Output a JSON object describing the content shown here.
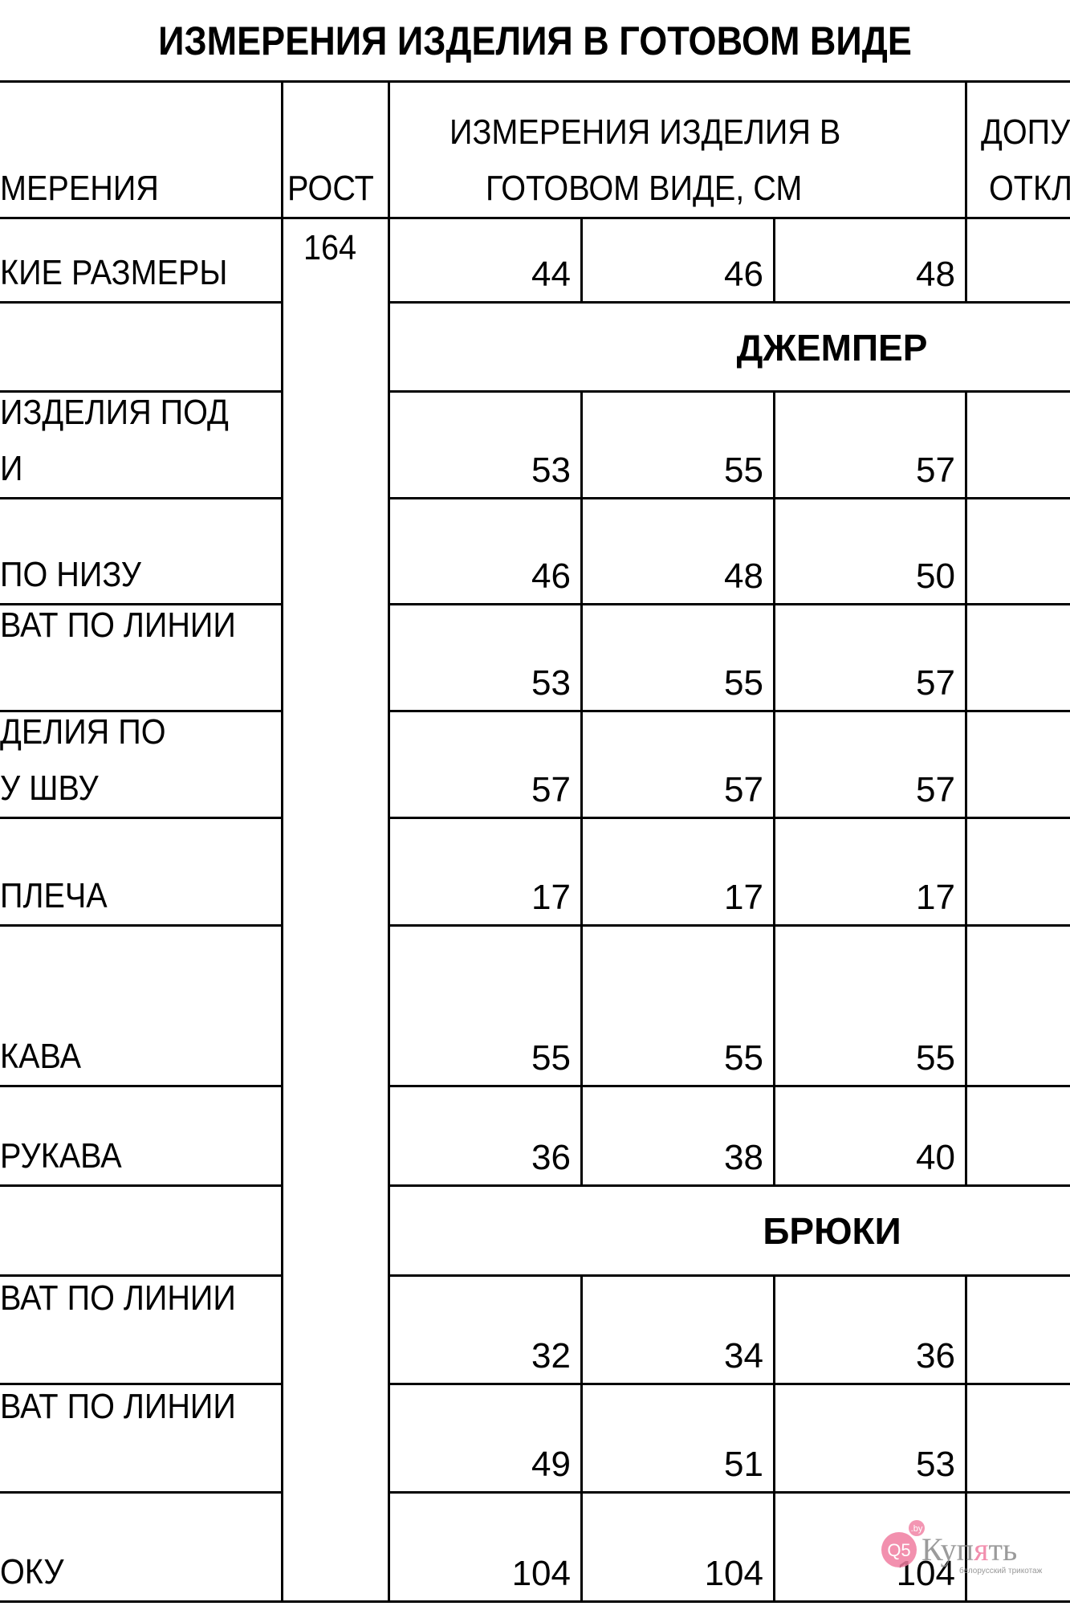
{
  "title": "ИЗМЕРЕНИЯ ИЗДЕЛИЯ В ГОТОВОМ ВИДЕ",
  "header": {
    "measure": "МЕРЕНИЯ",
    "height": "РОСТ",
    "dims_line1": "ИЗМЕРЕНИЯ ИЗДЕЛИЯ В",
    "dims_line2": "ГОТОВОМ ВИДЕ, СМ",
    "tol_line1": "ДОПУ",
    "tol_line2": "ОТКЛ"
  },
  "height_value": "164",
  "rows": [
    {
      "l1": "",
      "l2": "КИЕ РАЗМЕРЫ",
      "v": [
        "44",
        "46",
        "48"
      ]
    },
    {
      "section": "ДЖЕМПЕР"
    },
    {
      "l1": "ИЗДЕЛИЯ ПОД",
      "l2": "И",
      "v": [
        "53",
        "55",
        "57"
      ]
    },
    {
      "l1": "",
      "l2": "ПО НИЗУ",
      "v": [
        "46",
        "48",
        "50"
      ]
    },
    {
      "l1": "ВАТ ПО ЛИНИИ",
      "l2": "",
      "v": [
        "53",
        "55",
        "57"
      ]
    },
    {
      "l1": "ДЕЛИЯ ПО",
      "l2": "У ШВУ",
      "v": [
        "57",
        "57",
        "57"
      ]
    },
    {
      "l1": "",
      "l2": "ПЛЕЧА",
      "v": [
        "17",
        "17",
        "17"
      ]
    },
    {
      "l1": "",
      "l2": "КАВА",
      "v": [
        "55",
        "55",
        "55"
      ]
    },
    {
      "l1": "",
      "l2": "РУКАВА",
      "v": [
        "36",
        "38",
        "40"
      ]
    },
    {
      "section": "БРЮКИ"
    },
    {
      "l1": "ВАТ ПО ЛИНИИ",
      "l2": "",
      "v": [
        "32",
        "34",
        "36"
      ]
    },
    {
      "l1": "ВАТ ПО ЛИНИИ",
      "l2": "",
      "v": [
        "49",
        "51",
        "53"
      ]
    },
    {
      "l1": "",
      "l2": "ОКУ",
      "v": [
        "104",
        "104",
        "104"
      ]
    }
  ],
  "watermark": {
    "brand": "Купять",
    "badge": "Q5",
    "domain": ".by",
    "tagline": "белорусский трикотаж",
    "colors": {
      "pink": "#f07ca0",
      "gray": "#8a8a8a"
    }
  }
}
